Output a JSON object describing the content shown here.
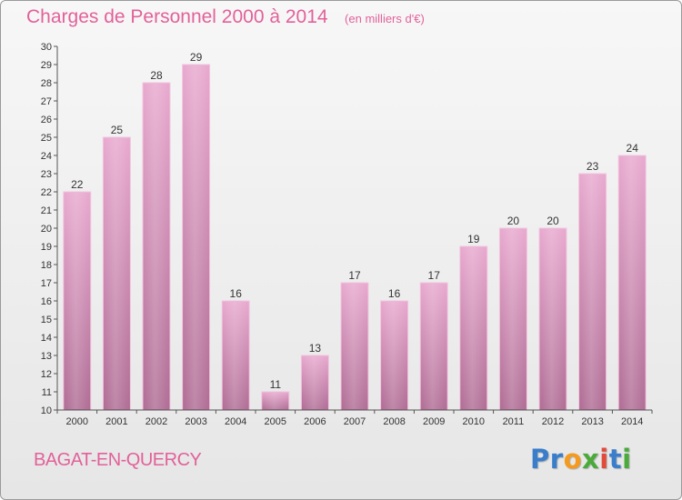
{
  "chart_data": {
    "type": "bar",
    "title": "Charges de Personnel 2000 à 2014",
    "subtitle": "(en milliers d'€)",
    "categories": [
      "2000",
      "2001",
      "2002",
      "2003",
      "2004",
      "2005",
      "2006",
      "2007",
      "2008",
      "2009",
      "2010",
      "2011",
      "2012",
      "2013",
      "2014"
    ],
    "values": [
      22,
      25,
      28,
      29,
      16,
      11,
      13,
      17,
      16,
      17,
      19,
      20,
      20,
      23,
      24
    ],
    "ylim": [
      10,
      30
    ],
    "yticks": [
      10,
      11,
      12,
      13,
      14,
      15,
      16,
      17,
      18,
      19,
      20,
      21,
      22,
      23,
      24,
      25,
      26,
      27,
      28,
      29,
      30
    ],
    "grid": false,
    "legend": "none",
    "bar_color": "#d78bb6"
  },
  "place": "BAGAT-EN-QUERCY",
  "brand": {
    "letters": [
      {
        "ch": "P",
        "color": "#3a7ecb"
      },
      {
        "ch": "r",
        "color": "#3a7ecb"
      },
      {
        "ch": "o",
        "color": "#f39a1f"
      },
      {
        "ch": "x",
        "color": "#4aaa3a"
      },
      {
        "ch": "i",
        "color": "#e24b3a"
      },
      {
        "ch": "t",
        "color": "#3a7ecb"
      },
      {
        "ch": "i",
        "color": "#4aaa3a"
      }
    ]
  }
}
